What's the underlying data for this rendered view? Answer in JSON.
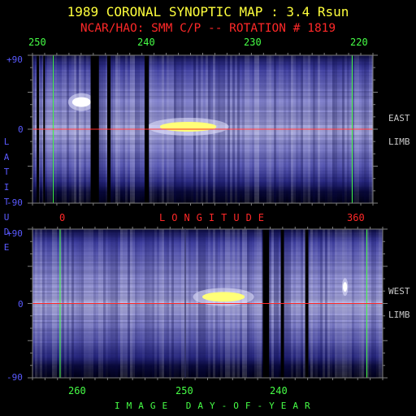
{
  "title": "1989 CORONAL SYNOPTIC MAP : 3.4 Rsun",
  "subtitle": "NCAR/HAO: SMM C/P -- ROTATION # 1819",
  "colors": {
    "yellow": "#ffff3c",
    "red": "#ff2828",
    "green": "#46ff46",
    "blue_label": "#5a5aff"
  },
  "chart_data": [
    {
      "type": "heatmap",
      "panel": "east-limb",
      "side_label": [
        "EAST",
        "LIMB"
      ],
      "top_axis": {
        "ticks": [
          250,
          240,
          230,
          220
        ]
      },
      "x_axis": {
        "label": "LONGITUDE",
        "ticks": [
          0,
          360
        ]
      },
      "y_axis": {
        "label": "LATITUDE",
        "ticks": [
          "+90",
          "0",
          "-90"
        ],
        "range": [
          -90,
          90
        ]
      },
      "x_range": [
        -25,
        385
      ],
      "data_gaps_longitude": [
        [
          -20,
          -17
        ],
        [
          -12,
          -10
        ],
        [
          45,
          55
        ],
        [
          65,
          69
        ],
        [
          110,
          115
        ]
      ],
      "green_lines_longitude": [
        0,
        360
      ],
      "red_line_latitude": 0,
      "bright_features": [
        {
          "lon_range": [
            120,
            205
          ],
          "lat": 3,
          "peak": "yellow"
        },
        {
          "lon_range": [
            20,
            48
          ],
          "lat": 33,
          "peak": "white"
        }
      ]
    },
    {
      "type": "heatmap",
      "panel": "west-limb",
      "side_label": [
        "WEST",
        "LIMB"
      ],
      "x_axis": {
        "label": "IMAGE DAY-OF-YEAR",
        "ticks": [
          260,
          250,
          240
        ]
      },
      "y_axis": {
        "label": "LATITUDE",
        "ticks": [
          "+90",
          "0",
          "-90"
        ],
        "range": [
          -90,
          90
        ]
      },
      "x_range": [
        265.5,
        232.5
      ],
      "data_gaps_day": [
        [
          243.8,
          243.2
        ],
        [
          242.1,
          241.8
        ],
        [
          239.8,
          239.5
        ]
      ],
      "green_lines_day": [
        262.9,
        234.0
      ],
      "red_line_latitude": 0,
      "bright_features": [
        {
          "day_range": [
            250,
            245
          ],
          "lat": 8,
          "peak": "yellow"
        },
        {
          "day_range": [
            236.3,
            235.8
          ],
          "lat": 20,
          "peak": "white"
        }
      ]
    }
  ],
  "labels": {
    "lat_letters": [
      "L",
      "A",
      "T",
      "I",
      "T",
      "U",
      "D",
      "E"
    ],
    "longitude_text": "LONGITUDE",
    "doy_text": "IMAGE DAY-OF-YEAR"
  }
}
